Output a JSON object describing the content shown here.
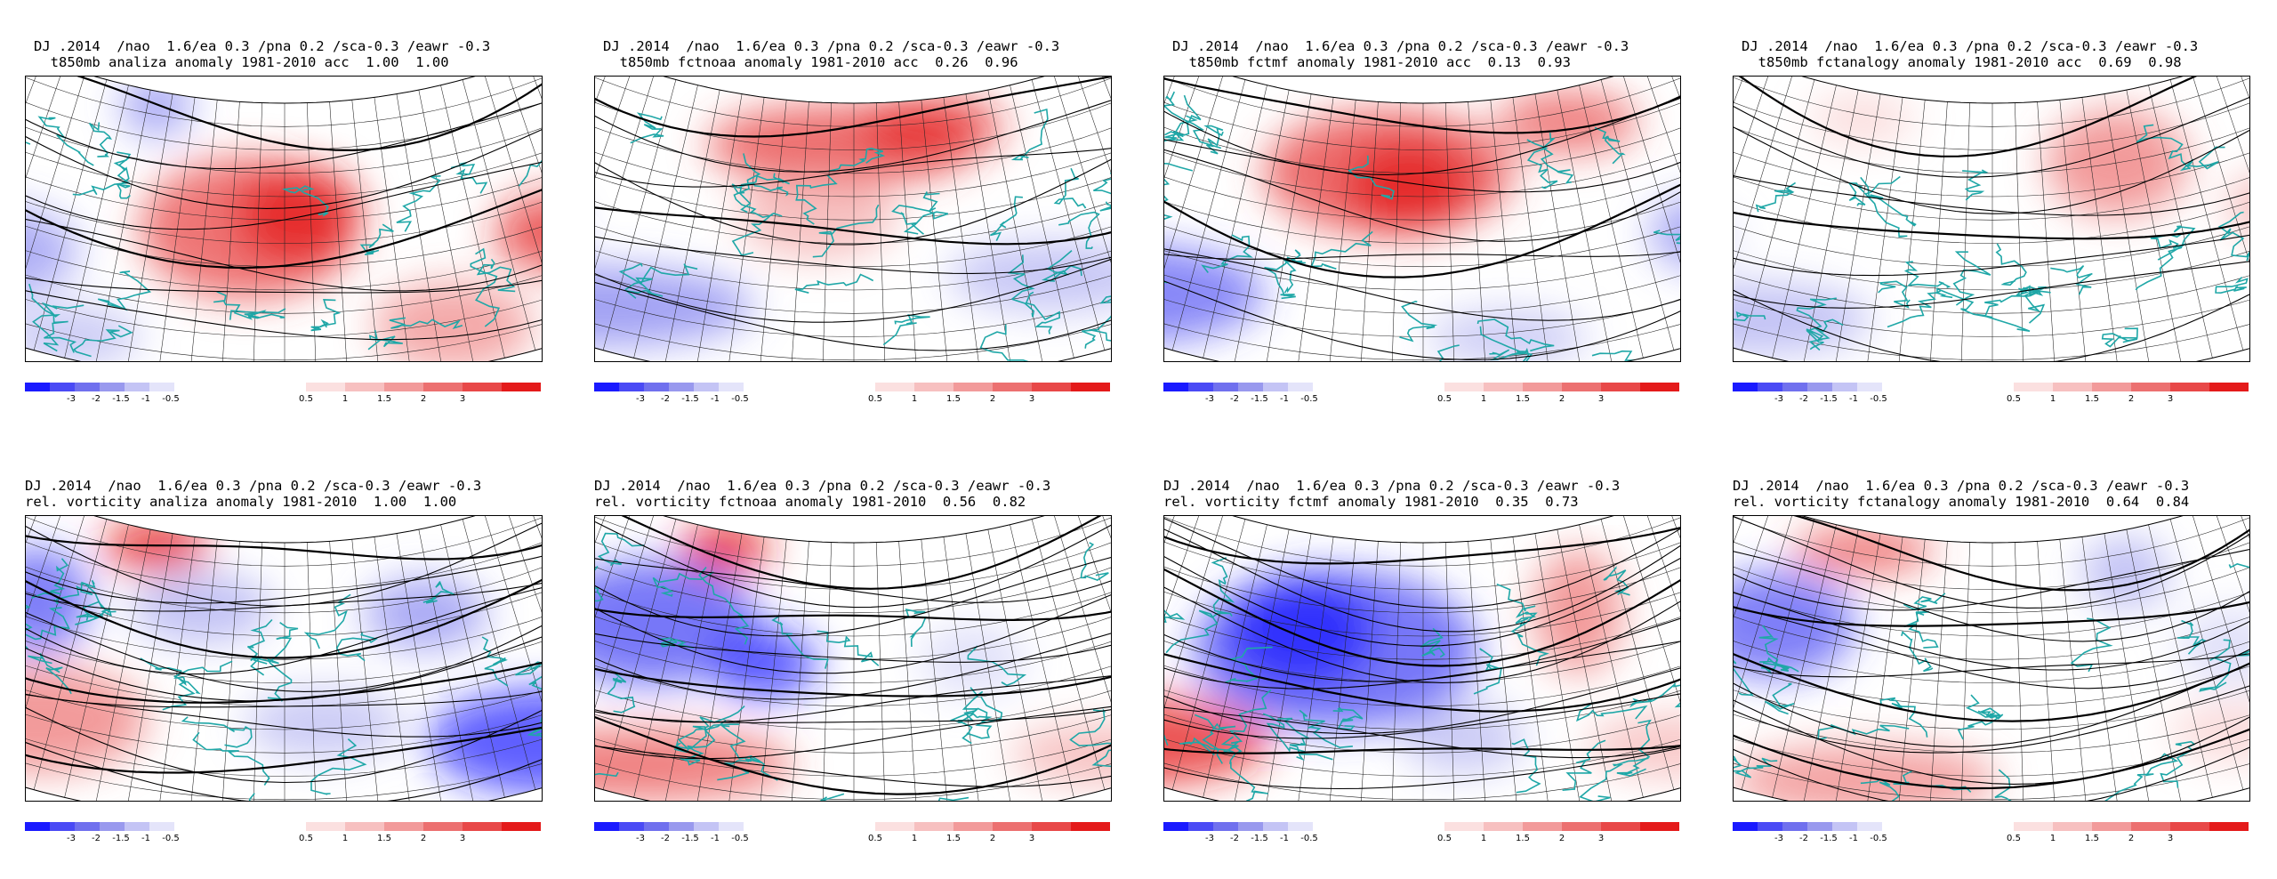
{
  "panels": [
    {
      "line1": "DJ .2014  /nao  1.6/ea 0.3 /pna 0.2 /sca-0.3 /eawr -0.3",
      "line2": "  t850mb analiza anomaly 1981-2010 acc  1.00  1.00",
      "kind": "temp",
      "variant": 0
    },
    {
      "line1": "DJ .2014  /nao  1.6/ea 0.3 /pna 0.2 /sca-0.3 /eawr -0.3",
      "line2": "  t850mb fctnoaa anomaly 1981-2010 acc  0.26  0.96",
      "kind": "temp",
      "variant": 1
    },
    {
      "line1": "DJ .2014  /nao  1.6/ea 0.3 /pna 0.2 /sca-0.3 /eawr -0.3",
      "line2": "  t850mb fctmf anomaly 1981-2010 acc  0.13  0.93",
      "kind": "temp",
      "variant": 2
    },
    {
      "line1": "DJ .2014  /nao  1.6/ea 0.3 /pna 0.2 /sca-0.3 /eawr -0.3",
      "line2": "  t850mb fctanalogy anomaly 1981-2010 acc  0.69  0.98",
      "kind": "temp",
      "variant": 3
    },
    {
      "line1": "DJ .2014  /nao  1.6/ea 0.3 /pna 0.2 /sca-0.3 /eawr -0.3",
      "line2": "rel. vorticity analiza anomaly 1981-2010  1.00  1.00",
      "kind": "vort",
      "variant": 0
    },
    {
      "line1": "DJ .2014  /nao  1.6/ea 0.3 /pna 0.2 /sca-0.3 /eawr -0.3",
      "line2": "rel. vorticity fctnoaa anomaly 1981-2010  0.56  0.82",
      "kind": "vort",
      "variant": 1
    },
    {
      "line1": "DJ .2014  /nao  1.6/ea 0.3 /pna 0.2 /sca-0.3 /eawr -0.3",
      "line2": "rel. vorticity fctmf anomaly 1981-2010  0.35  0.73",
      "kind": "vort",
      "variant": 2
    },
    {
      "line1": "DJ .2014  /nao  1.6/ea 0.3 /pna 0.2 /sca-0.3 /eawr -0.3",
      "line2": "rel. vorticity fctanalogy anomaly 1981-2010  0.64  0.84",
      "kind": "vort",
      "variant": 3
    }
  ],
  "colorbar": {
    "labels": [
      "-3",
      "-2",
      "-1.5",
      "-1",
      "-0.5",
      "0.5",
      "1",
      "1.5",
      "2",
      "3"
    ],
    "blues": [
      "#1a1aff",
      "#4a4af5",
      "#7070ee",
      "#9999ee",
      "#c4c4f5",
      "#e4e4fa"
    ],
    "reds": [
      "#fbe0e0",
      "#f7c0c0",
      "#f29a9a",
      "#ec7070",
      "#e84848",
      "#e41a1a"
    ]
  },
  "colors": {
    "coast": "#1fa7a7",
    "contour": "#000000",
    "grid": "#222222",
    "positive": "#e41a1a",
    "negative": "#1a1aff"
  }
}
